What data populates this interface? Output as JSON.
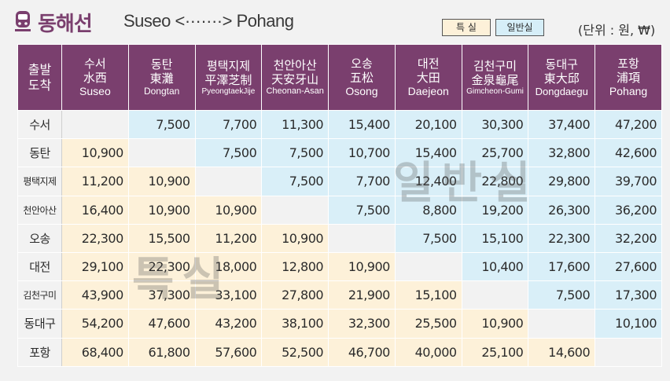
{
  "header": {
    "title_kr": "동해선",
    "title_en": "Suseo <·······> Pohang",
    "legend_special": "특 실",
    "legend_normal": "일반실",
    "unit": "(단위 : 원, ₩)"
  },
  "corner": {
    "line1": "출발",
    "line2": "도착"
  },
  "columns": [
    {
      "kr": "수서",
      "hanja": "水西",
      "en": "Suseo"
    },
    {
      "kr": "동탄",
      "hanja": "東灘",
      "en": "Dongtan"
    },
    {
      "kr": "평택지제",
      "hanja": "平澤芝制",
      "en": "PyeongtaekJije"
    },
    {
      "kr": "천안아산",
      "hanja": "天安牙山",
      "en": "Cheonan-Asan"
    },
    {
      "kr": "오송",
      "hanja": "五松",
      "en": "Osong"
    },
    {
      "kr": "대전",
      "hanja": "大田",
      "en": "Daejeon"
    },
    {
      "kr": "김천구미",
      "hanja": "金泉龜尾",
      "en": "Gimcheon-Gumi"
    },
    {
      "kr": "동대구",
      "hanja": "東大邱",
      "en": "Dongdaegu"
    },
    {
      "kr": "포항",
      "hanja": "浦項",
      "en": "Pohang"
    }
  ],
  "rows": [
    {
      "station": "수서",
      "fares": [
        "",
        "7,500",
        "7,700",
        "11,300",
        "15,400",
        "20,100",
        "30,300",
        "37,400",
        "47,200"
      ]
    },
    {
      "station": "동탄",
      "fares": [
        "10,900",
        "",
        "7,500",
        "7,500",
        "10,700",
        "15,400",
        "25,700",
        "32,800",
        "42,600"
      ]
    },
    {
      "station": "평택지제",
      "fares": [
        "11,200",
        "10,900",
        "",
        "7,500",
        "7,700",
        "12,400",
        "22,800",
        "29,800",
        "39,700"
      ]
    },
    {
      "station": "천안아산",
      "fares": [
        "16,400",
        "10,900",
        "10,900",
        "",
        "7,500",
        "8,800",
        "19,200",
        "26,300",
        "36,200"
      ]
    },
    {
      "station": "오송",
      "fares": [
        "22,300",
        "15,500",
        "11,200",
        "10,900",
        "",
        "7,500",
        "15,100",
        "22,300",
        "32,200"
      ]
    },
    {
      "station": "대전",
      "fares": [
        "29,100",
        "22,300",
        "18,000",
        "12,800",
        "10,900",
        "",
        "10,400",
        "17,600",
        "27,600"
      ]
    },
    {
      "station": "김천구미",
      "fares": [
        "43,900",
        "37,300",
        "33,100",
        "27,800",
        "21,900",
        "15,100",
        "",
        "7,500",
        "17,300"
      ]
    },
    {
      "station": "동대구",
      "fares": [
        "54,200",
        "47,600",
        "43,200",
        "38,100",
        "32,300",
        "25,500",
        "10,900",
        "",
        "10,100"
      ]
    },
    {
      "station": "포항",
      "fares": [
        "68,400",
        "61,800",
        "57,600",
        "52,500",
        "46,700",
        "40,000",
        "25,100",
        "14,600",
        ""
      ]
    }
  ],
  "watermarks": {
    "normal": "일반실",
    "special": "특실"
  },
  "colors": {
    "header_bg": "#7a3f6e",
    "special_bg": "#fdf1d9",
    "normal_bg": "#d9eff8",
    "page_bg": "#f2f2f2"
  }
}
